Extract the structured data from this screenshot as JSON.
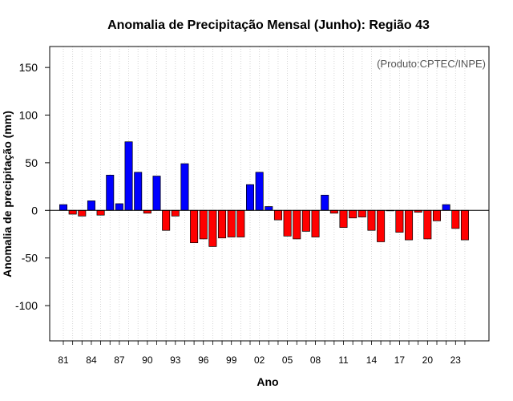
{
  "chart_data": {
    "type": "bar",
    "title": "Anomalia de Precipitação Mensal (Junho): Região 43",
    "xlabel": "Ano",
    "ylabel": "Anomalia de precipitação (mm)",
    "annotation": "(Produto:CPTEC/INPE)",
    "ylim": [
      -137,
      172
    ],
    "yticks": [
      -100,
      -50,
      0,
      50,
      100,
      150
    ],
    "xtick_labels": [
      "81",
      "84",
      "87",
      "90",
      "93",
      "96",
      "99",
      "02",
      "05",
      "08",
      "11",
      "14",
      "17",
      "20",
      "23"
    ],
    "categories": [
      "1981",
      "1982",
      "1983",
      "1984",
      "1985",
      "1986",
      "1987",
      "1988",
      "1989",
      "1990",
      "1991",
      "1992",
      "1993",
      "1994",
      "1995",
      "1996",
      "1997",
      "1998",
      "1999",
      "2000",
      "2001",
      "2002",
      "2003",
      "2004",
      "2005",
      "2006",
      "2007",
      "2008",
      "2009",
      "2010",
      "2011",
      "2012",
      "2013",
      "2014",
      "2015",
      "2016",
      "2017",
      "2018",
      "2019",
      "2020",
      "2021",
      "2022",
      "2023",
      "2024"
    ],
    "values": [
      6,
      -4,
      -6,
      10,
      -5,
      37,
      7,
      72,
      40,
      -3,
      36,
      -21,
      -6,
      49,
      -34,
      -30,
      -38,
      -29,
      -28,
      -28,
      27,
      40,
      4,
      -10,
      -27,
      -30,
      -22,
      -28,
      16,
      -3,
      -18,
      -8,
      -7,
      -21,
      -33,
      0,
      -23,
      -31,
      -2,
      -30,
      -11,
      6,
      -19,
      -31
    ],
    "colors": {
      "positive": "#0000ff",
      "negative": "#ff0000"
    },
    "grid": "vertical dotted",
    "legend": "none"
  }
}
